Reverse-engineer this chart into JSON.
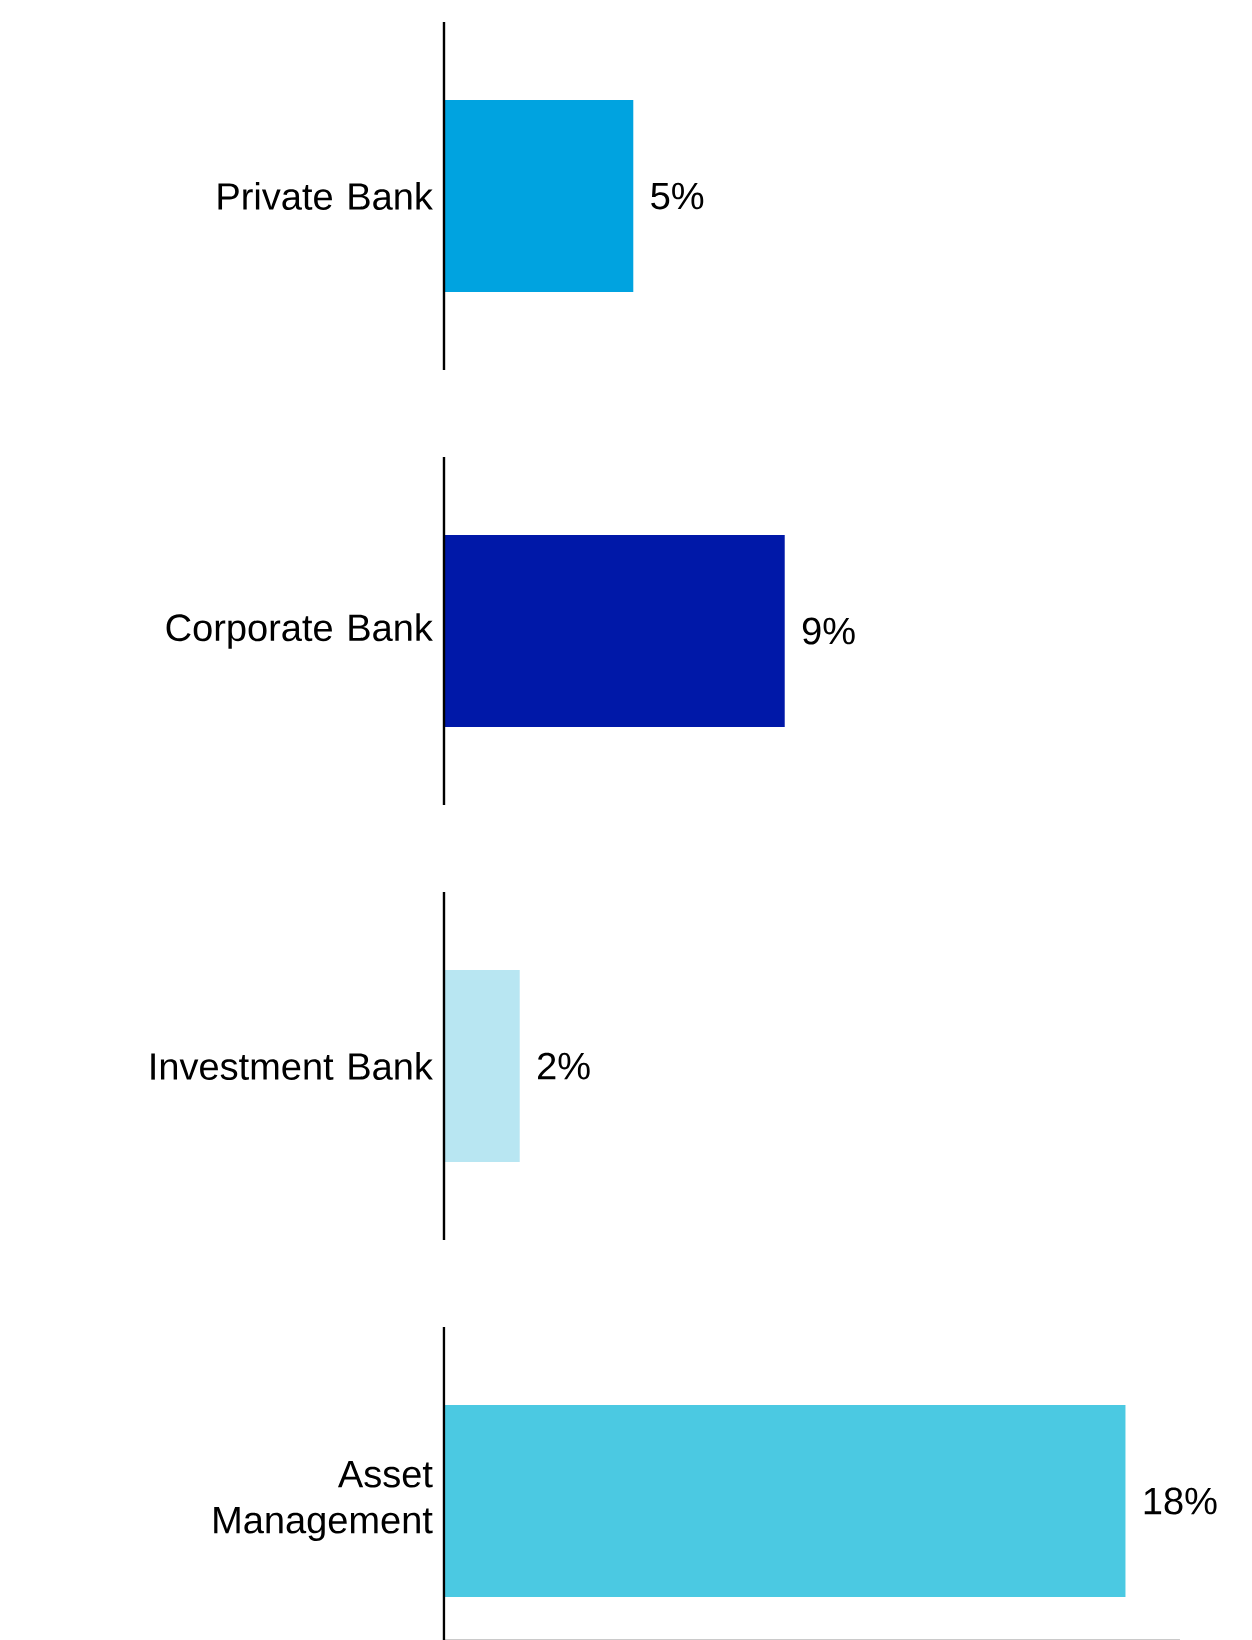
{
  "chart_data": {
    "type": "bar",
    "orientation": "horizontal",
    "categories": [
      "Private Bank",
      "Corporate Bank",
      "Investment Bank",
      "Asset Management"
    ],
    "values": [
      5,
      9,
      2,
      18
    ],
    "value_labels": [
      "5%",
      "9%",
      "2%",
      "18%"
    ],
    "colors": [
      "#00a3e0",
      "#0018a8",
      "#b8e6f2",
      "#4bc9e2"
    ]
  }
}
